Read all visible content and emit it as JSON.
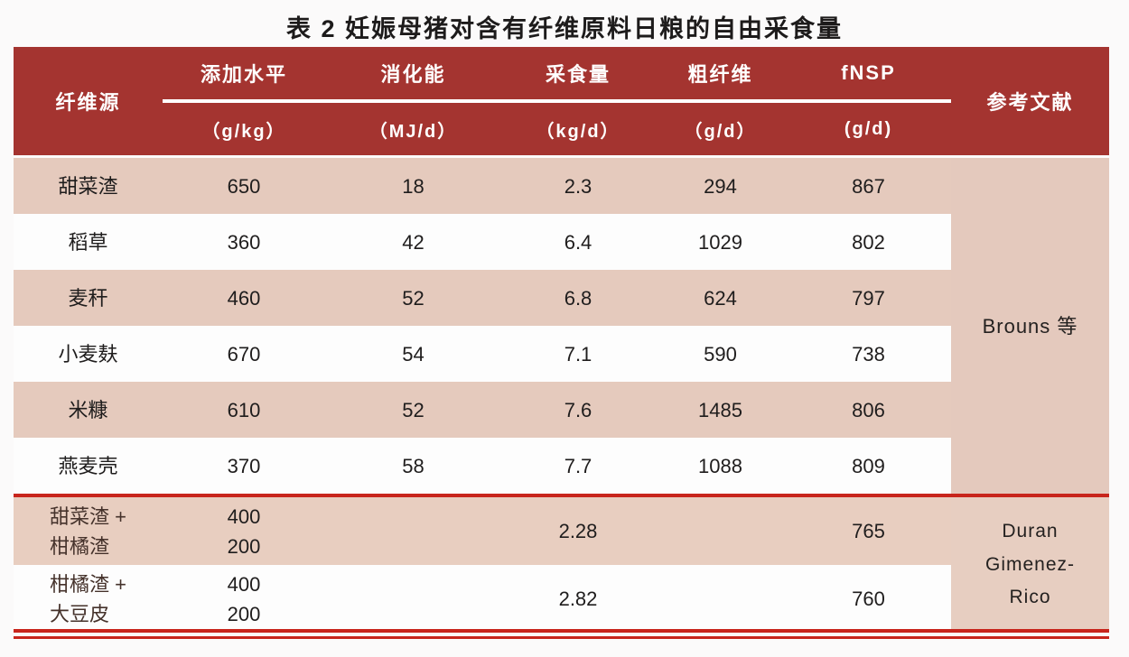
{
  "title": "表 2  妊娠母猪对含有纤维原料日粮的自由采食量",
  "colors": {
    "header_bg": "#a43430",
    "row_pink": "#e5cabd",
    "row_pink_group2": "#e8cec0",
    "row_white": "#fdfdfd",
    "separator_red": "#c8251c",
    "header_text": "#ffffff",
    "body_text": "#1f1d1d",
    "page_bg": "#fbfafa"
  },
  "table": {
    "header": {
      "fiber_source": "纤维源",
      "reference": "参考文献",
      "columns": [
        {
          "label": "添加水平",
          "unit": "（g/kg）"
        },
        {
          "label": "消化能",
          "unit": "（MJ/d）"
        },
        {
          "label": "采食量",
          "unit": "（kg/d）"
        },
        {
          "label": "粗纤维",
          "unit": "（g/d）"
        },
        {
          "label": "fNSP",
          "unit": "(g/d)"
        }
      ]
    },
    "groups": [
      {
        "reference": "Brouns 等",
        "rows": [
          {
            "source": "甜菜渣",
            "level": "650",
            "de": "18",
            "intake": "2.3",
            "cf": "294",
            "fnsp": "867"
          },
          {
            "source": "稻草",
            "level": "360",
            "de": "42",
            "intake": "6.4",
            "cf": "1029",
            "fnsp": "802"
          },
          {
            "source": "麦秆",
            "level": "460",
            "de": "52",
            "intake": "6.8",
            "cf": "624",
            "fnsp": "797"
          },
          {
            "source": "小麦麸",
            "level": "670",
            "de": "54",
            "intake": "7.1",
            "cf": "590",
            "fnsp": "738"
          },
          {
            "source": "米糠",
            "level": "610",
            "de": "52",
            "intake": "7.6",
            "cf": "1485",
            "fnsp": "806"
          },
          {
            "source": "燕麦壳",
            "level": "370",
            "de": "58",
            "intake": "7.7",
            "cf": "1088",
            "fnsp": "809"
          }
        ]
      },
      {
        "reference": "Duran\nGimenez-\nRico",
        "rows": [
          {
            "source": "甜菜渣 +\n柑橘渣",
            "level": "400\n200",
            "de": "",
            "intake": "2.28",
            "cf": "",
            "fnsp": "765"
          },
          {
            "source": "柑橘渣 +\n大豆皮",
            "level": "400\n200",
            "de": "",
            "intake": "2.82",
            "cf": "",
            "fnsp": "760"
          }
        ]
      }
    ]
  }
}
